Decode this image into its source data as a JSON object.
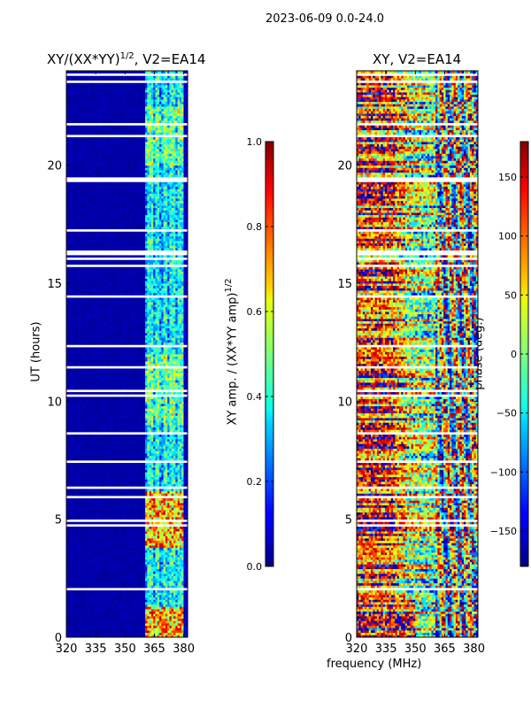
{
  "figure": {
    "suptitle": "2023-06-09 0.0-24.0",
    "xlabel": "frequency (MHz)"
  },
  "chart_data": [
    {
      "type": "heatmap",
      "title_main": "XY/(XX*YY)",
      "title_sup": "1/2",
      "title_tail": ", V2=EA14",
      "xlabel": "",
      "ylabel": "UT (hours)",
      "xlim": [
        320,
        382
      ],
      "ylim": [
        0,
        24
      ],
      "xticks": [
        320,
        335,
        350,
        365,
        380
      ],
      "yticks": [
        0,
        5,
        10,
        15,
        20
      ],
      "colorbar": {
        "label_main": "XY amp. / (XX*YY amp)",
        "label_sup": "1/2",
        "range": [
          0.0,
          1.0
        ],
        "ticks": [
          0.0,
          0.2,
          0.4,
          0.6,
          0.8,
          1.0
        ],
        "tick_labels": [
          "0.0",
          "0.2",
          "0.4",
          "0.6",
          "0.8",
          "1.0"
        ],
        "colormap": "jet"
      },
      "description": "Low amplitude (~0.05) over 320-360 MHz; 360-380 MHz band shows amplitudes ~0.3-0.6 with higher values (~0.7-0.9) near 0-1 h and 4-6 h; horizontal white gaps (flagged data) at many times."
    },
    {
      "type": "heatmap",
      "title": "XY, V2=EA14",
      "xlabel": "",
      "ylabel": "",
      "xlim": [
        320,
        382
      ],
      "ylim": [
        0,
        24
      ],
      "xticks": [
        320,
        335,
        350,
        365,
        380
      ],
      "yticks": [
        0,
        5,
        10,
        15,
        20
      ],
      "colorbar": {
        "label": "phase (deg.)",
        "range": [
          -180,
          180
        ],
        "ticks": [
          -150,
          -100,
          -50,
          0,
          50,
          100,
          150
        ],
        "tick_labels": [
          "−150",
          "−100",
          "−50",
          "0",
          "50",
          "100",
          "150"
        ],
        "colormap": "jet"
      },
      "description": "Phase varies strongly with time and frequency; mostly positive (red/orange) in 320-340 MHz, near 0 (green) around 345-360 MHz, mixed in 360-380 MHz; horizontal white gaps at flagged times."
    }
  ]
}
